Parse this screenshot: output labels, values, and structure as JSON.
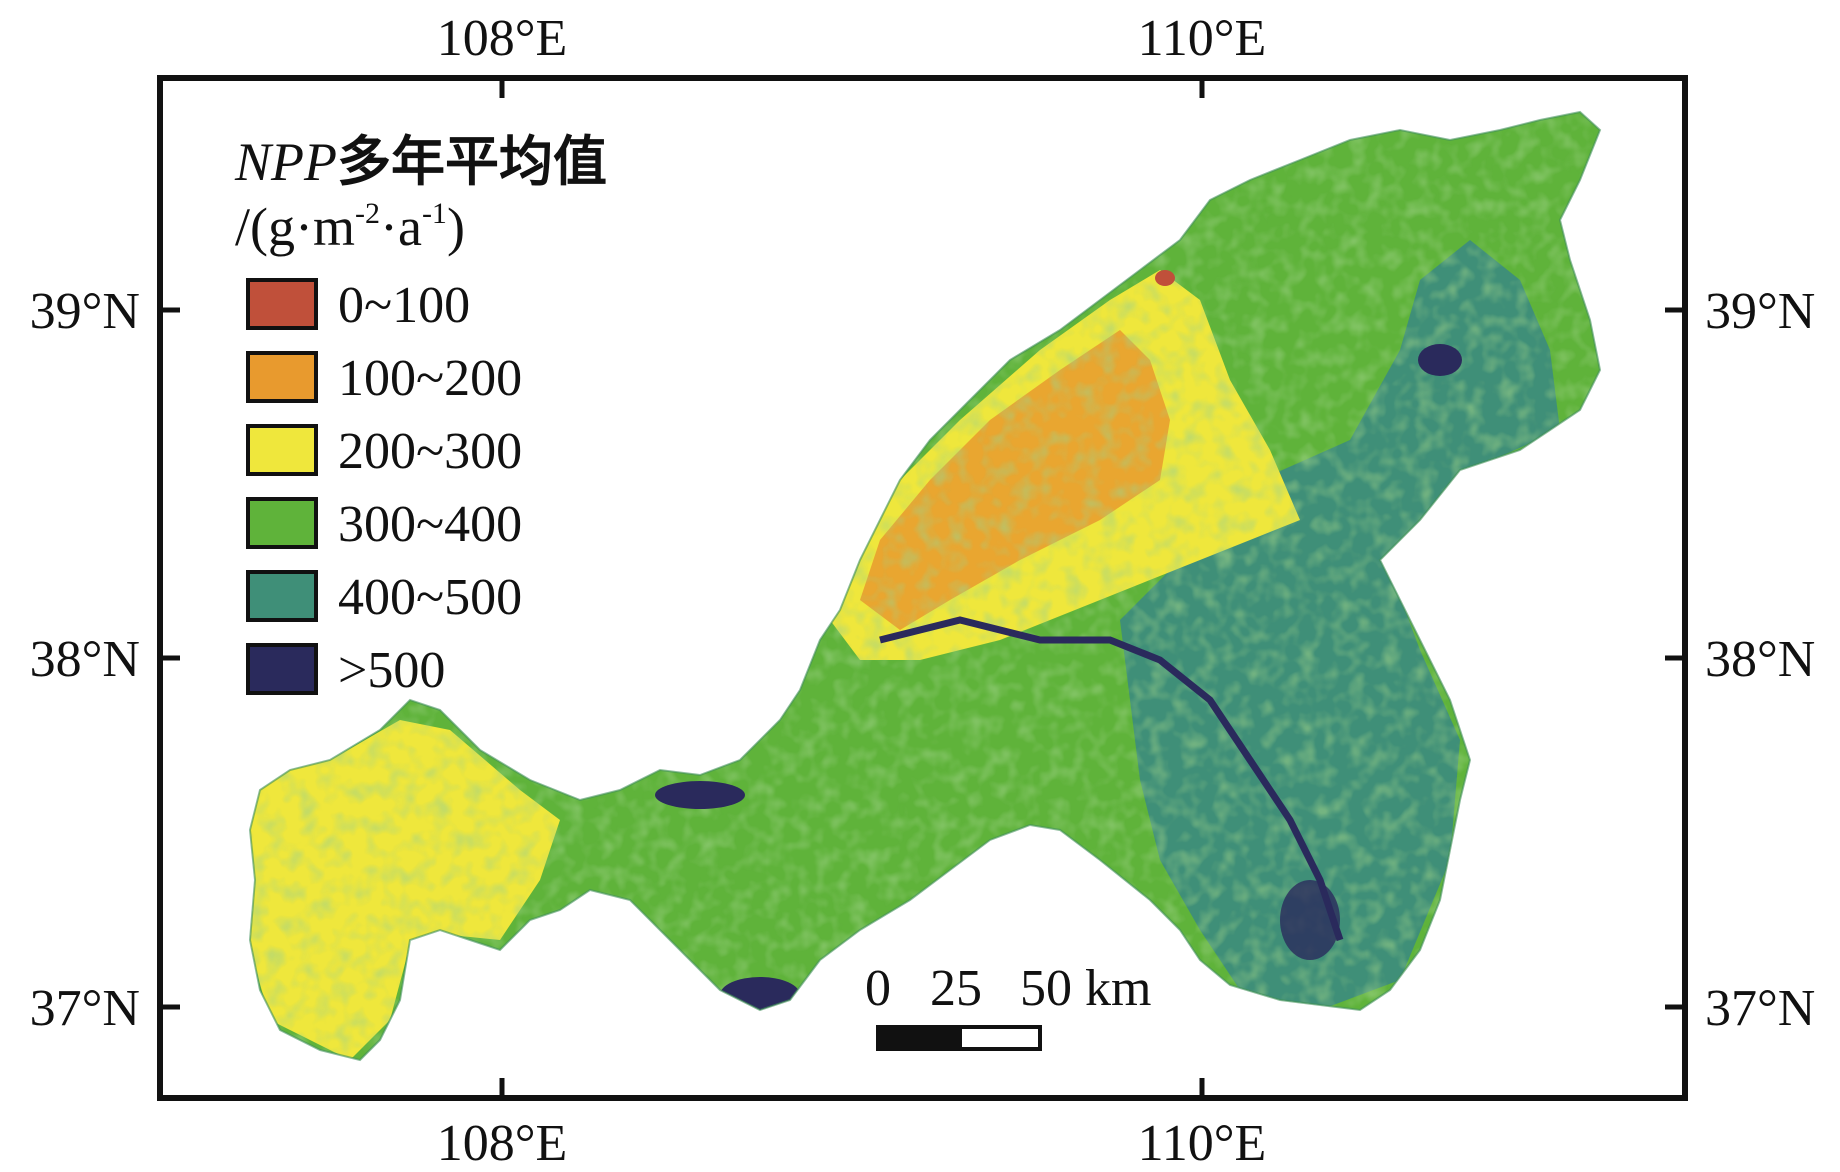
{
  "map": {
    "axes": {
      "top_ticks": [
        "108°E",
        "110°E"
      ],
      "bottom_ticks": [
        "108°E",
        "110°E"
      ],
      "left_ticks": [
        "39°N",
        "38°N",
        "37°N"
      ],
      "right_ticks": [
        "39°N",
        "38°N",
        "37°N"
      ]
    },
    "legend": {
      "title_italic": "NPP",
      "title_cn": "多年平均值",
      "unit_prefix": "/(g·m",
      "unit_exp1": "-2",
      "unit_mid": "·a",
      "unit_exp2": "-1",
      "unit_suffix": ")",
      "classes": [
        {
          "label": "0~100",
          "color": "#c0503a"
        },
        {
          "label": "100~200",
          "color": "#e89a2e"
        },
        {
          "label": "200~300",
          "color": "#efe73c"
        },
        {
          "label": "300~400",
          "color": "#5fb33a"
        },
        {
          "label": "400~500",
          "color": "#3f8f78"
        },
        {
          "label": ">500",
          "color": "#2a2a5c"
        }
      ]
    },
    "scale_bar": {
      "labels": [
        "0",
        "25",
        "50 km"
      ]
    }
  }
}
